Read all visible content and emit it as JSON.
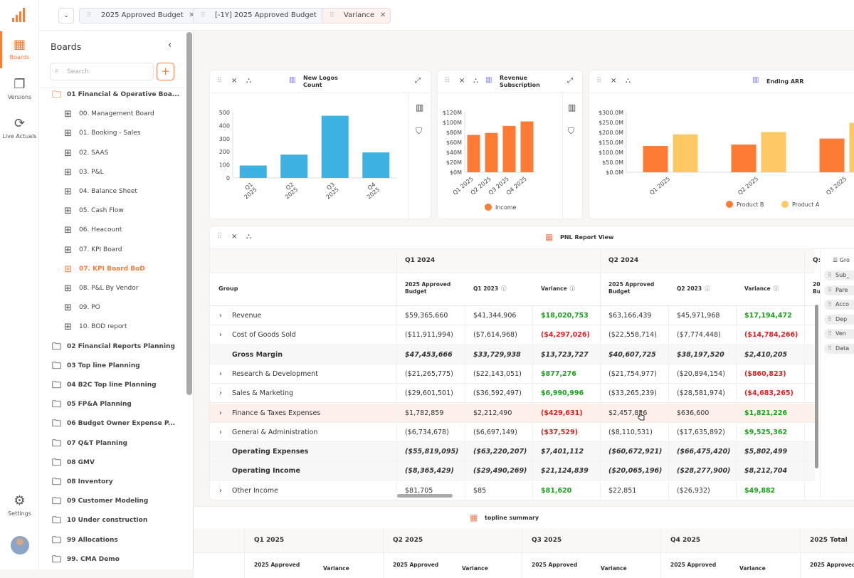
{
  "rail": {
    "items": [
      {
        "label": "Boards",
        "icon": "boards-icon"
      },
      {
        "label": "Versions",
        "icon": "versions-icon"
      },
      {
        "label": "Live Actuals",
        "icon": "live-actuals-icon"
      },
      {
        "label": "Settings",
        "icon": "gear-icon"
      }
    ]
  },
  "topbar": {
    "chips": [
      {
        "label": "2025 Approved Budget"
      },
      {
        "label": "[-1Y] 2025 Approved Budget"
      },
      {
        "label": "Variance"
      }
    ]
  },
  "sidebar": {
    "title": "Boards",
    "search_placeholder": "Search",
    "tree": [
      {
        "label": "01 Financial & Operative Boa...",
        "type": "folder-open",
        "level": 0
      },
      {
        "label": "00. Management Board",
        "type": "board",
        "level": 1
      },
      {
        "label": "01. Booking - Sales",
        "type": "board",
        "level": 1
      },
      {
        "label": "02. SAAS",
        "type": "board",
        "level": 1
      },
      {
        "label": "03. P&L",
        "type": "board",
        "level": 1
      },
      {
        "label": "04. Balance Sheet",
        "type": "board",
        "level": 1
      },
      {
        "label": "05. Cash Flow",
        "type": "board",
        "level": 1
      },
      {
        "label": "06. Heacount",
        "type": "board",
        "level": 1
      },
      {
        "label": "07. KPI Board",
        "type": "board",
        "level": 1
      },
      {
        "label": "07. KPI Board BoD",
        "type": "board",
        "level": 1,
        "active": true
      },
      {
        "label": "08. P&L By Vendor",
        "type": "board",
        "level": 1
      },
      {
        "label": "09. PO",
        "type": "board",
        "level": 1
      },
      {
        "label": "10. BOD report",
        "type": "board",
        "level": 1
      },
      {
        "label": "02 Financial Reports Planning",
        "type": "folder",
        "level": 0
      },
      {
        "label": "03 Top line Planning",
        "type": "folder",
        "level": 0
      },
      {
        "label": "04 B2C Top line Planning",
        "type": "folder",
        "level": 0
      },
      {
        "label": "05 FP&A Planning",
        "type": "folder",
        "level": 0
      },
      {
        "label": "06 Budget Owner Expense P...",
        "type": "folder",
        "level": 0
      },
      {
        "label": "07 Q&T Planning",
        "type": "folder",
        "level": 0
      },
      {
        "label": "08 GMV",
        "type": "folder",
        "level": 0
      },
      {
        "label": "08 Inventory",
        "type": "folder",
        "level": 0
      },
      {
        "label": "09 Customer Modeling",
        "type": "folder",
        "level": 0
      },
      {
        "label": "10 Under construction",
        "type": "folder",
        "level": 0
      },
      {
        "label": "99 Allocations",
        "type": "folder",
        "level": 0
      },
      {
        "label": "99. CMA Demo",
        "type": "folder",
        "level": 0
      }
    ]
  },
  "colors": {
    "accent": "#ff7a33",
    "blue_bar": "#3db1e1",
    "orange_bar": "#fd7b35",
    "yellow_bar": "#fec964",
    "positive": "#1aa31a",
    "negative": "#e0201f"
  },
  "chart_data": [
    {
      "type": "bar",
      "title": "New Logos Count",
      "categories": [
        "Q1 2025",
        "Q2 2025",
        "Q3 2025",
        "Q4 2025"
      ],
      "values": [
        95,
        178,
        475,
        195
      ],
      "ylim": [
        0,
        500
      ],
      "yticks": [
        "0",
        "100",
        "200",
        "300",
        "400",
        "500"
      ]
    },
    {
      "type": "bar",
      "title": "Revenue Subscription",
      "categories": [
        "Q1 2025",
        "Q2 2025",
        "Q3 2025",
        "Q4 2025"
      ],
      "series": [
        {
          "name": "Income",
          "values": [
            75,
            79,
            93,
            102
          ]
        }
      ],
      "unit": "$M",
      "ylim": [
        0,
        120
      ],
      "yticks": [
        "$0M",
        "$20M",
        "$40M",
        "$60M",
        "$80M",
        "$100M",
        "$120M"
      ],
      "legend": "bottom"
    },
    {
      "type": "bar",
      "title": "Ending ARR",
      "categories": [
        "Q1 2025",
        "Q2 2025",
        "Q3 2025"
      ],
      "series": [
        {
          "name": "Product B",
          "values": [
            132,
            139,
            169
          ]
        },
        {
          "name": "Product A",
          "values": [
            190,
            202,
            248
          ]
        }
      ],
      "unit": "$M",
      "ylim": [
        0,
        300
      ],
      "yticks": [
        "$0.0M",
        "$50.0M",
        "$100.0M",
        "$150.0M",
        "$200.0M",
        "$250.0M",
        "$300.0M"
      ],
      "legend": "bottom"
    }
  ],
  "pnl": {
    "title": "PNL Report View",
    "group_header": "Group",
    "quarters": [
      "Q1 2024",
      "Q2 2024",
      "Q:"
    ],
    "subheaders": [
      "2025 Approved Budget",
      "Q1 2023",
      "Variance",
      "2025 Approved Budget",
      "Q2 2023",
      "Variance",
      "20 Bu"
    ],
    "rows": [
      {
        "label": "Revenue",
        "expand": true,
        "v": [
          "$59,365,660",
          "$41,344,906",
          "$18,020,753",
          "$63,166,439",
          "$45,971,968",
          "$17,194,472"
        ],
        "var": [
          "pos",
          "pos"
        ]
      },
      {
        "label": "Cost of Goods Sold",
        "expand": true,
        "v": [
          "($11,911,994)",
          "($7,614,968)",
          "($4,297,026)",
          "($22,558,714)",
          "($7,774,448)",
          "($14,784,266)"
        ],
        "var": [
          "neg",
          "neg"
        ]
      },
      {
        "label": "Gross Margin",
        "total": true,
        "v": [
          "$47,453,666",
          "$33,729,938",
          "$13,723,727",
          "$40,607,725",
          "$38,197,520",
          "$2,410,205"
        ]
      },
      {
        "label": "Research & Development",
        "expand": true,
        "v": [
          "($21,265,775)",
          "($22,143,051)",
          "$877,276",
          "($21,754,977)",
          "($20,894,154)",
          "($860,823)"
        ],
        "var": [
          "pos",
          "neg"
        ]
      },
      {
        "label": "Sales & Marketing",
        "expand": true,
        "v": [
          "($29,601,501)",
          "($36,592,497)",
          "$6,990,996",
          "($33,265,239)",
          "($28,581,974)",
          "($4,683,265)"
        ],
        "var": [
          "pos",
          "neg"
        ]
      },
      {
        "label": "Finance & Taxes Expenses",
        "expand": true,
        "hover": true,
        "v": [
          "$1,782,859",
          "$2,212,490",
          "($429,631)",
          "$2,457,826",
          "$636,600",
          "$1,821,226"
        ],
        "var": [
          "neg",
          "pos"
        ]
      },
      {
        "label": "General & Administration",
        "expand": true,
        "v": [
          "($6,734,678)",
          "($6,697,149)",
          "($37,529)",
          "($8,110,531)",
          "($17,635,892)",
          "$9,525,362"
        ],
        "var": [
          "neg",
          "pos"
        ]
      },
      {
        "label": "Operating Expenses",
        "total": true,
        "v": [
          "($55,819,095)",
          "($63,220,207)",
          "$7,401,112",
          "($60,672,921)",
          "($66,475,420)",
          "$5,802,499"
        ]
      },
      {
        "label": "Operating Income",
        "total": true,
        "v": [
          "($8,365,429)",
          "($29,490,269)",
          "$21,124,839",
          "($20,065,196)",
          "($28,277,900)",
          "$8,212,704"
        ]
      },
      {
        "label": "Other Income",
        "expand": true,
        "v": [
          "$81,705",
          "$85",
          "$81,620",
          "$22,851",
          "($26,932)",
          "$49,882"
        ],
        "var": [
          "pos",
          "pos"
        ]
      }
    ],
    "side_panel": [
      "Gro",
      "Sub_",
      "Pare",
      "Acco",
      "Dep",
      "Ven",
      "Data"
    ]
  },
  "topline": {
    "title": "topline summary",
    "quarters": [
      "Q1 2025",
      "Q2 2025",
      "Q3 2025",
      "Q4 2025",
      "2025 Total"
    ],
    "sub": [
      "2025 Approved",
      "Variance"
    ]
  }
}
